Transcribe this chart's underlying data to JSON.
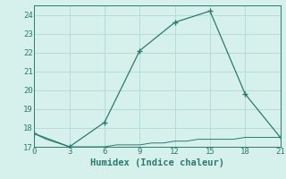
{
  "xlabel": "Humidex (Indice chaleur)",
  "ylabel": "",
  "line1_x": [
    0,
    3,
    6,
    9,
    12,
    15,
    18,
    21
  ],
  "line1_y": [
    17.7,
    17.0,
    18.3,
    22.1,
    23.6,
    24.2,
    19.8,
    17.5
  ],
  "line2_x": [
    0,
    1,
    2,
    3,
    4,
    5,
    6,
    7,
    8,
    9,
    10,
    11,
    12,
    13,
    14,
    15,
    16,
    17,
    18,
    19,
    20,
    21
  ],
  "line2_y": [
    17.7,
    17.4,
    17.2,
    17.0,
    17.0,
    17.0,
    17.0,
    17.1,
    17.1,
    17.1,
    17.2,
    17.2,
    17.3,
    17.3,
    17.4,
    17.4,
    17.4,
    17.4,
    17.5,
    17.5,
    17.5,
    17.5
  ],
  "line_color": "#2a7b6f",
  "bg_color": "#d6f0eb",
  "grid_color": "#b8ddd8",
  "text_color": "#2a7b6f",
  "xlim": [
    0,
    21
  ],
  "ylim": [
    17,
    24.5
  ],
  "xticks": [
    0,
    3,
    6,
    9,
    12,
    15,
    18,
    21
  ],
  "yticks": [
    17,
    18,
    19,
    20,
    21,
    22,
    23,
    24
  ],
  "tick_fontsize": 6.5,
  "xlabel_fontsize": 7.5
}
